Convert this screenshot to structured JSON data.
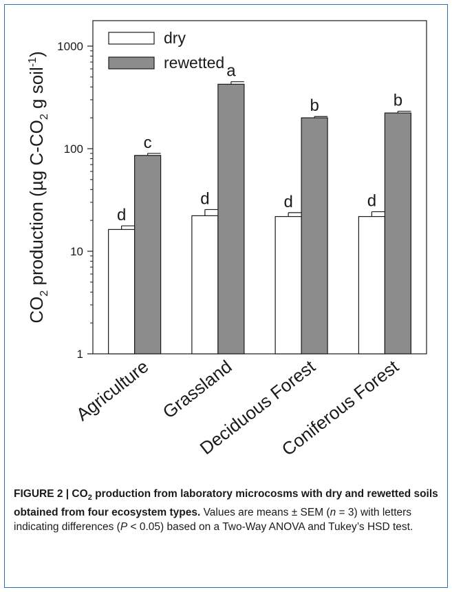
{
  "chart_data": {
    "type": "bar",
    "yscale": "log",
    "ylim": [
      1,
      2000
    ],
    "yticks": [
      1,
      10,
      100,
      1000
    ],
    "ytick_labels": [
      "1",
      "10",
      "100",
      "1000"
    ],
    "ylabel": {
      "pre": "CO",
      "sub1": "2",
      "mid": " production (µg C-CO",
      "sub2": "2",
      "post": " g soil",
      "sup": "-1",
      "end": ")"
    },
    "categories": [
      "Agriculture",
      "Grassland",
      "Deciduous Forest",
      "Coniferous Forest"
    ],
    "legend_position": "top-left",
    "series": [
      {
        "name": "dry",
        "color": "#ffffff",
        "values": [
          16.3,
          22.2,
          21.8,
          21.8
        ],
        "errors": [
          1.4,
          3.3,
          2.0,
          2.5
        ],
        "letters": [
          "d",
          "d",
          "d",
          "d"
        ]
      },
      {
        "name": "rewetted",
        "color": "#8c8c8c",
        "values": [
          86,
          425,
          200,
          223
        ],
        "errors": [
          4,
          25,
          6,
          9
        ],
        "letters": [
          "c",
          "a",
          "b",
          "b"
        ]
      }
    ]
  },
  "caption": {
    "figure_label": "FIGURE 2 | CO",
    "figure_label_sub": "2",
    "bold_rest": " production from laboratory microcosms with dry and rewetted soils obtained from four ecosystem types.",
    "text1": " Values are means ± SEM (",
    "n_var": "n",
    "text2": " = 3) with letters indicating differences (",
    "p_var": "P",
    "text3": " < 0.05) based on a Two-Way ANOVA and Tukey’s HSD test."
  }
}
